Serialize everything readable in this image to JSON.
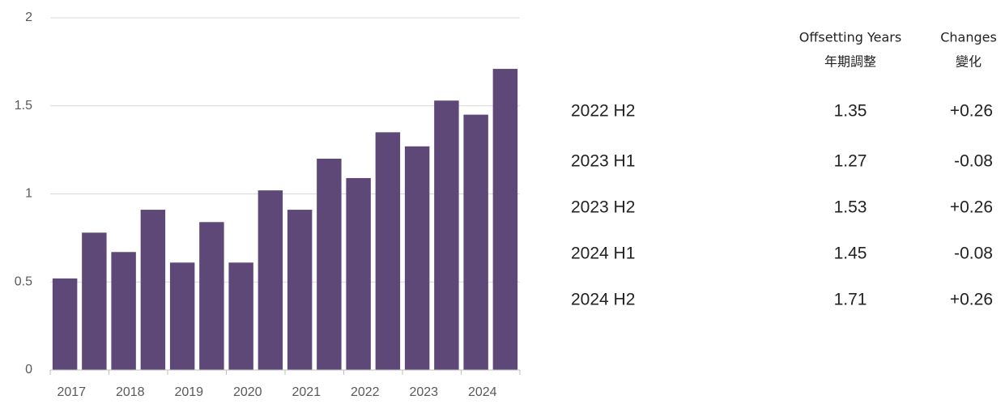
{
  "chart_data": {
    "type": "bar",
    "categories": [
      "2017",
      null,
      "2018",
      null,
      "2019",
      null,
      "2020",
      null,
      "2021",
      null,
      "2022",
      null,
      "2023",
      null,
      "2024",
      null
    ],
    "values": [
      0.52,
      0.78,
      0.67,
      0.91,
      0.61,
      0.84,
      0.61,
      1.02,
      0.91,
      1.2,
      1.09,
      1.35,
      1.27,
      1.53,
      1.45,
      1.71
    ],
    "color": "#5e4877",
    "ylim": [
      0,
      2
    ],
    "yticks": [
      0,
      0.5,
      1,
      1.5,
      2
    ],
    "grid": true
  },
  "table": {
    "columns": [
      {
        "en": "Offsetting Years",
        "zh": "年期調整"
      },
      {
        "en": "Changes",
        "zh": "變化"
      }
    ],
    "rows": [
      [
        "2022 H2",
        "1.35",
        "+0.26"
      ],
      [
        "2023 H1",
        "1.27",
        "-0.08"
      ],
      [
        "2023 H2",
        "1.53",
        "+0.26"
      ],
      [
        "2024 H1",
        "1.45",
        "-0.08"
      ],
      [
        "2024 H2",
        "1.71",
        "+0.26"
      ]
    ]
  }
}
